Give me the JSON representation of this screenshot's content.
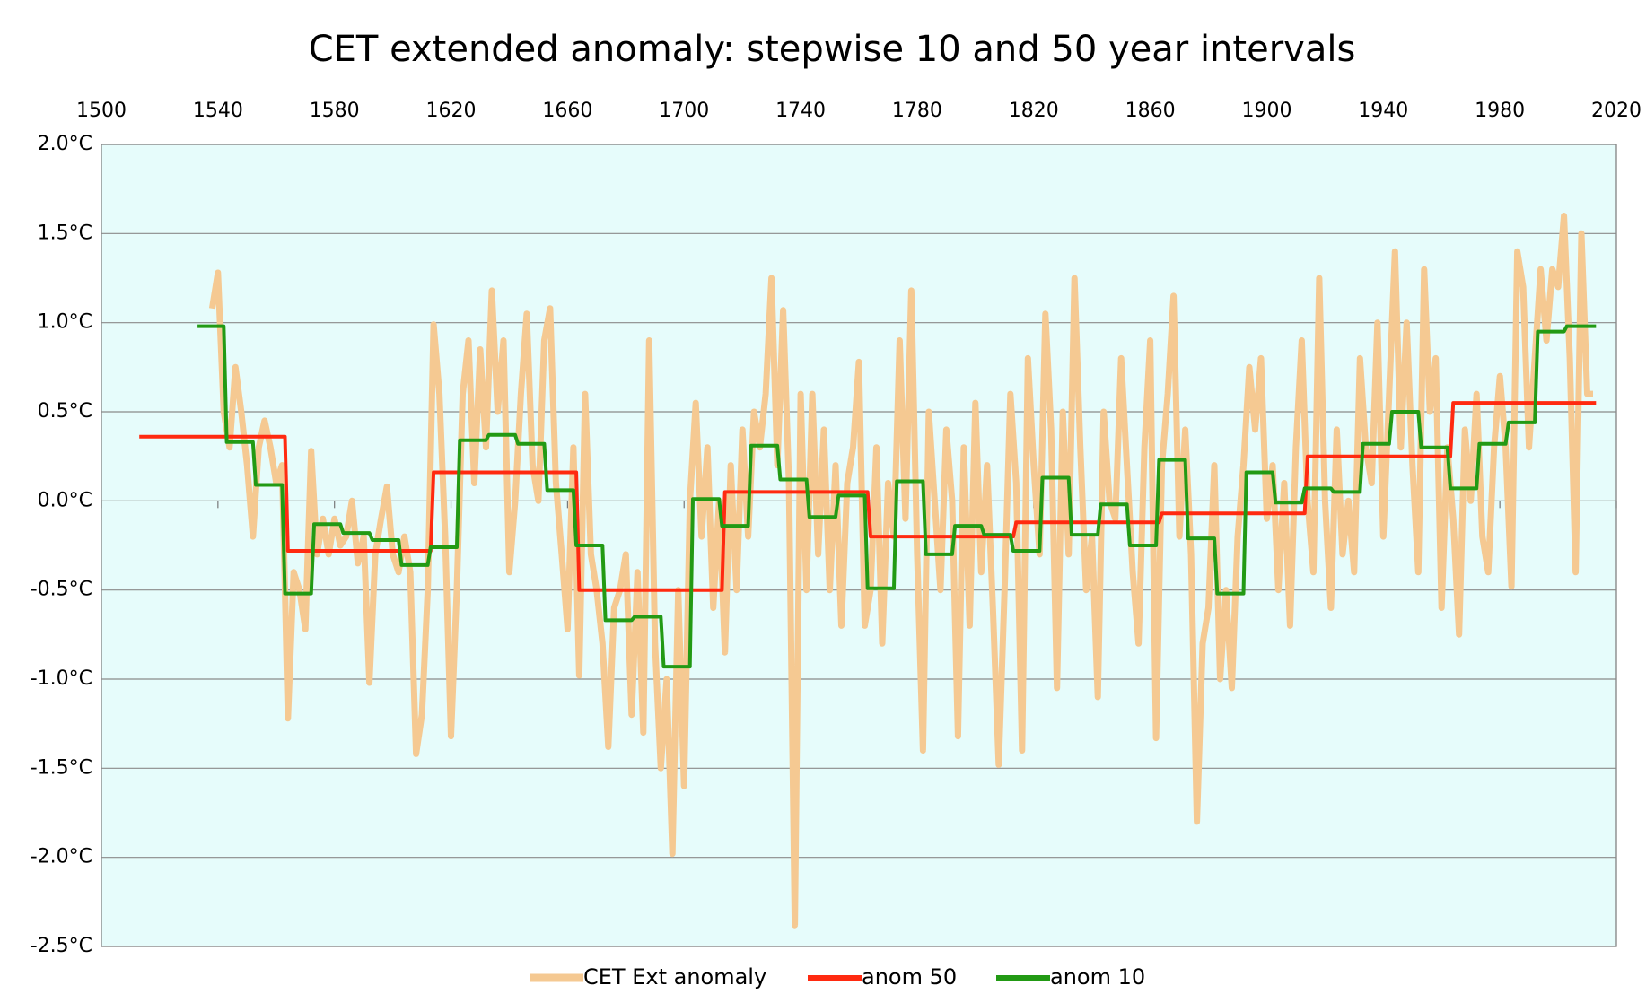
{
  "chart_data": {
    "type": "line",
    "title": "CET extended anomaly:  stepwise 10 and 50 year intervals",
    "xlim": [
      1500,
      2020
    ],
    "xticks": [
      1500,
      1540,
      1580,
      1620,
      1660,
      1700,
      1740,
      1780,
      1820,
      1860,
      1900,
      1940,
      1980,
      2020
    ],
    "ylim": [
      -2.5,
      2.0
    ],
    "yticks": [
      {
        "value": -2.5,
        "label": "-2.5°C"
      },
      {
        "value": -2.0,
        "label": "-2.0°C"
      },
      {
        "value": -1.5,
        "label": "-1.5°C"
      },
      {
        "value": -1.0,
        "label": "-1.0°C"
      },
      {
        "value": -0.5,
        "label": "-0.5°C"
      },
      {
        "value": 0.0,
        "label": "0.0°C"
      },
      {
        "value": 0.5,
        "label": "0.5°C"
      },
      {
        "value": 1.0,
        "label": "1.0°C"
      },
      {
        "value": 1.5,
        "label": "1.5°C"
      },
      {
        "value": 2.0,
        "label": "2.0°C"
      }
    ],
    "grid": true,
    "legend": "bottom",
    "background": "#e6fcfb",
    "series": [
      {
        "name": "CET Ext anomaly",
        "color": "#f5c992",
        "width": 7,
        "x": [
          1538,
          1540,
          1542,
          1544,
          1546,
          1548,
          1550,
          1552,
          1554,
          1556,
          1558,
          1560,
          1562,
          1564,
          1566,
          1568,
          1570,
          1572,
          1574,
          1576,
          1578,
          1580,
          1582,
          1584,
          1586,
          1588,
          1590,
          1592,
          1594,
          1596,
          1598,
          1600,
          1602,
          1604,
          1606,
          1608,
          1610,
          1612,
          1614,
          1616,
          1618,
          1620,
          1622,
          1624,
          1626,
          1628,
          1630,
          1632,
          1634,
          1636,
          1638,
          1640,
          1642,
          1644,
          1646,
          1648,
          1650,
          1652,
          1654,
          1656,
          1658,
          1660,
          1662,
          1664,
          1666,
          1668,
          1670,
          1672,
          1674,
          1676,
          1678,
          1680,
          1682,
          1684,
          1686,
          1688,
          1690,
          1692,
          1694,
          1696,
          1698,
          1700,
          1702,
          1704,
          1706,
          1708,
          1710,
          1712,
          1714,
          1716,
          1718,
          1720,
          1722,
          1724,
          1726,
          1728,
          1730,
          1732,
          1734,
          1736,
          1738,
          1740,
          1742,
          1744,
          1746,
          1748,
          1750,
          1752,
          1754,
          1756,
          1758,
          1760,
          1762,
          1764,
          1766,
          1768,
          1770,
          1772,
          1774,
          1776,
          1778,
          1780,
          1782,
          1784,
          1786,
          1788,
          1790,
          1792,
          1794,
          1796,
          1798,
          1800,
          1802,
          1804,
          1806,
          1808,
          1810,
          1812,
          1814,
          1816,
          1818,
          1820,
          1822,
          1824,
          1826,
          1828,
          1830,
          1832,
          1834,
          1836,
          1838,
          1840,
          1842,
          1844,
          1846,
          1848,
          1850,
          1852,
          1854,
          1856,
          1858,
          1860,
          1862,
          1864,
          1866,
          1868,
          1870,
          1872,
          1874,
          1876,
          1878,
          1880,
          1882,
          1884,
          1886,
          1888,
          1890,
          1892,
          1894,
          1896,
          1898,
          1900,
          1902,
          1904,
          1906,
          1908,
          1910,
          1912,
          1914,
          1916,
          1918,
          1920,
          1922,
          1924,
          1926,
          1928,
          1930,
          1932,
          1934,
          1936,
          1938,
          1940,
          1942,
          1944,
          1946,
          1948,
          1950,
          1952,
          1954,
          1956,
          1958,
          1960,
          1962,
          1964,
          1966,
          1968,
          1970,
          1972,
          1974,
          1976,
          1978,
          1980,
          1982,
          1984,
          1986,
          1988,
          1990,
          1992,
          1994,
          1996,
          1998,
          2000,
          2002,
          2004,
          2006,
          2008,
          2010,
          2012
        ],
        "values": [
          1.08,
          1.28,
          0.5,
          0.3,
          0.75,
          0.5,
          0.2,
          -0.2,
          0.3,
          0.45,
          0.3,
          0.1,
          0.2,
          -1.22,
          -0.4,
          -0.5,
          -0.72,
          0.28,
          -0.3,
          -0.1,
          -0.3,
          -0.1,
          -0.25,
          -0.2,
          0.0,
          -0.35,
          -0.2,
          -1.02,
          -0.3,
          -0.1,
          0.08,
          -0.3,
          -0.4,
          -0.2,
          -0.4,
          -1.42,
          -1.2,
          -0.5,
          0.99,
          0.6,
          -0.2,
          -1.32,
          -0.5,
          0.6,
          0.9,
          0.1,
          0.85,
          0.3,
          1.18,
          0.5,
          0.9,
          -0.4,
          0.0,
          0.6,
          1.05,
          0.2,
          0.0,
          0.9,
          1.08,
          0.1,
          -0.3,
          -0.72,
          0.3,
          -0.98,
          0.6,
          -0.3,
          -0.5,
          -0.8,
          -1.38,
          -0.6,
          -0.5,
          -0.3,
          -1.2,
          -0.4,
          -1.3,
          0.9,
          -0.8,
          -1.5,
          -1.0,
          -1.98,
          -0.5,
          -1.6,
          0.0,
          0.55,
          -0.2,
          0.3,
          -0.6,
          0.0,
          -0.85,
          0.2,
          -0.5,
          0.4,
          -0.2,
          0.5,
          0.3,
          0.6,
          1.25,
          0.2,
          1.07,
          0.1,
          -2.38,
          0.6,
          -0.5,
          0.6,
          -0.3,
          0.4,
          -0.5,
          0.2,
          -0.7,
          0.1,
          0.3,
          0.78,
          -0.7,
          -0.5,
          0.3,
          -0.8,
          0.1,
          -0.2,
          0.9,
          -0.1,
          1.18,
          -0.3,
          -1.4,
          0.5,
          0.0,
          -0.5,
          0.4,
          0.0,
          -1.32,
          0.3,
          -0.7,
          0.55,
          -0.4,
          0.2,
          -0.6,
          -1.48,
          -0.5,
          0.6,
          0.1,
          -1.4,
          0.8,
          0.2,
          -0.3,
          1.05,
          0.4,
          -1.05,
          0.5,
          -0.3,
          1.25,
          0.3,
          -0.5,
          -0.2,
          -1.1,
          0.5,
          0.0,
          -0.1,
          0.8,
          0.2,
          -0.4,
          -0.8,
          0.3,
          0.9,
          -1.33,
          0.2,
          0.6,
          1.15,
          -0.2,
          0.4,
          -0.3,
          -1.8,
          -0.8,
          -0.6,
          0.2,
          -1.0,
          -0.5,
          -1.05,
          -0.2,
          0.2,
          0.75,
          0.4,
          0.8,
          -0.1,
          0.2,
          -0.5,
          0.1,
          -0.7,
          0.3,
          0.9,
          0.0,
          -0.4,
          1.25,
          0.0,
          -0.6,
          0.4,
          -0.3,
          0.0,
          -0.4,
          0.8,
          0.3,
          0.1,
          1.0,
          -0.2,
          0.6,
          1.4,
          0.3,
          1.0,
          0.2,
          -0.4,
          1.3,
          0.5,
          0.8,
          -0.6,
          0.3,
          -0.1,
          -0.75,
          0.4,
          0.0,
          0.6,
          -0.2,
          -0.4,
          0.3,
          0.7,
          0.3,
          -0.48,
          1.4,
          1.2,
          0.3,
          0.8,
          1.3,
          0.9,
          1.3,
          1.2,
          1.6,
          0.8,
          -0.4,
          1.5,
          0.6,
          0.6
        ]
      },
      {
        "name": "anom 50",
        "color": "#ff2a10",
        "width": 4,
        "x": [
          1513,
          1563,
          1564,
          1613,
          1614,
          1663,
          1664,
          1713,
          1714,
          1763,
          1764,
          1813,
          1814,
          1863,
          1864,
          1913,
          1914,
          1963,
          1964,
          2013
        ],
        "values": [
          0.36,
          0.36,
          -0.28,
          -0.28,
          0.16,
          0.16,
          -0.5,
          -0.5,
          0.05,
          0.05,
          -0.2,
          -0.2,
          -0.12,
          -0.12,
          -0.07,
          -0.07,
          0.25,
          0.25,
          0.55,
          0.55
        ]
      },
      {
        "name": "anom 10",
        "color": "#229a14",
        "width": 4,
        "x": [
          1533,
          1542,
          1543,
          1552,
          1553,
          1562,
          1563,
          1572,
          1573,
          1582,
          1583,
          1592,
          1593,
          1602,
          1603,
          1612,
          1613,
          1622,
          1623,
          1632,
          1633,
          1642,
          1643,
          1652,
          1653,
          1662,
          1663,
          1672,
          1673,
          1682,
          1683,
          1692,
          1693,
          1702,
          1703,
          1712,
          1713,
          1722,
          1723,
          1732,
          1733,
          1742,
          1743,
          1752,
          1753,
          1762,
          1763,
          1772,
          1773,
          1782,
          1783,
          1792,
          1793,
          1802,
          1803,
          1812,
          1813,
          1822,
          1823,
          1832,
          1833,
          1842,
          1843,
          1852,
          1853,
          1862,
          1863,
          1872,
          1873,
          1882,
          1883,
          1892,
          1893,
          1902,
          1903,
          1912,
          1913,
          1922,
          1923,
          1932,
          1933,
          1942,
          1943,
          1952,
          1953,
          1962,
          1963,
          1972,
          1973,
          1982,
          1983,
          1992,
          1993,
          2002,
          2003,
          2013
        ],
        "values": [
          0.98,
          0.98,
          0.33,
          0.33,
          0.09,
          0.09,
          -0.52,
          -0.52,
          -0.13,
          -0.13,
          -0.18,
          -0.18,
          -0.22,
          -0.22,
          -0.36,
          -0.36,
          -0.26,
          -0.26,
          0.34,
          0.34,
          0.37,
          0.37,
          0.32,
          0.32,
          0.06,
          0.06,
          -0.25,
          -0.25,
          -0.67,
          -0.67,
          -0.65,
          -0.65,
          -0.93,
          -0.93,
          0.01,
          0.01,
          -0.14,
          -0.14,
          0.31,
          0.31,
          0.12,
          0.12,
          -0.09,
          -0.09,
          0.03,
          0.03,
          -0.49,
          -0.49,
          0.11,
          0.11,
          -0.3,
          -0.3,
          -0.14,
          -0.14,
          -0.19,
          -0.19,
          -0.28,
          -0.28,
          0.13,
          0.13,
          -0.19,
          -0.19,
          -0.02,
          -0.02,
          -0.25,
          -0.25,
          0.23,
          0.23,
          -0.21,
          -0.21,
          -0.52,
          -0.52,
          0.16,
          0.16,
          -0.01,
          -0.01,
          0.07,
          0.07,
          0.05,
          0.05,
          0.32,
          0.32,
          0.5,
          0.5,
          0.3,
          0.3,
          0.07,
          0.07,
          0.32,
          0.32,
          0.44,
          0.44,
          0.95,
          0.95,
          0.98,
          0.98
        ]
      }
    ]
  }
}
